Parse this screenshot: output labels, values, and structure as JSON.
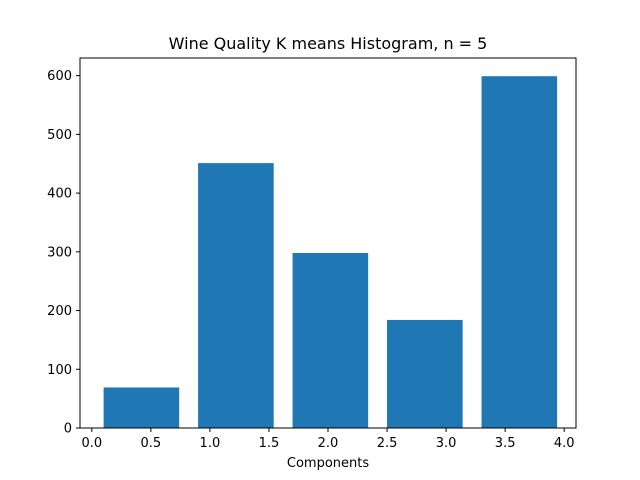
{
  "chart_data": {
    "type": "bar",
    "title": "Wine Quality K means Histogram, n = 5",
    "xlabel": "Components",
    "ylabel": "",
    "xlim": [
      -0.1,
      4.1
    ],
    "ylim": [
      0,
      630
    ],
    "xticks": [
      0.0,
      0.5,
      1.0,
      1.5,
      2.0,
      2.5,
      3.0,
      3.5,
      4.0
    ],
    "xtick_labels": [
      "0.0",
      "0.5",
      "1.0",
      "1.5",
      "2.0",
      "2.5",
      "3.0",
      "3.5",
      "4.0"
    ],
    "yticks": [
      0,
      100,
      200,
      300,
      400,
      500,
      600
    ],
    "ytick_labels": [
      "0",
      "100",
      "200",
      "300",
      "400",
      "500",
      "600"
    ],
    "bars": [
      {
        "x_start": 0.1,
        "x_end": 0.74,
        "value": 69
      },
      {
        "x_start": 0.9,
        "x_end": 1.54,
        "value": 451
      },
      {
        "x_start": 1.7,
        "x_end": 2.34,
        "value": 298
      },
      {
        "x_start": 2.5,
        "x_end": 3.14,
        "value": 184
      },
      {
        "x_start": 3.3,
        "x_end": 3.94,
        "value": 599
      }
    ],
    "bar_color": "#1f77b4",
    "grid": false
  }
}
